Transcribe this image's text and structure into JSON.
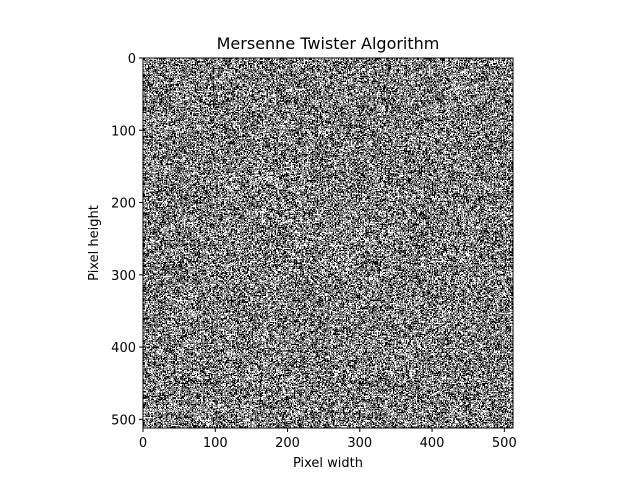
{
  "chart_data": {
    "type": "heatmap",
    "title": "Mersenne Twister Algorithm",
    "xlabel": "Pixel width",
    "ylabel": "Pixel height",
    "image_width": 512,
    "image_height": 512,
    "xlim": [
      0,
      512
    ],
    "ylim": [
      512,
      0
    ],
    "x_ticks": [
      0,
      100,
      200,
      300,
      400,
      500
    ],
    "y_ticks": [
      0,
      100,
      200,
      300,
      400,
      500
    ],
    "value_range": [
      0,
      1
    ],
    "colormap": {
      "0": "#000000",
      "1": "#ffffff"
    },
    "pixel_distribution": "random binary noise, roughly half black and half white",
    "grid": false,
    "legend": "none"
  }
}
